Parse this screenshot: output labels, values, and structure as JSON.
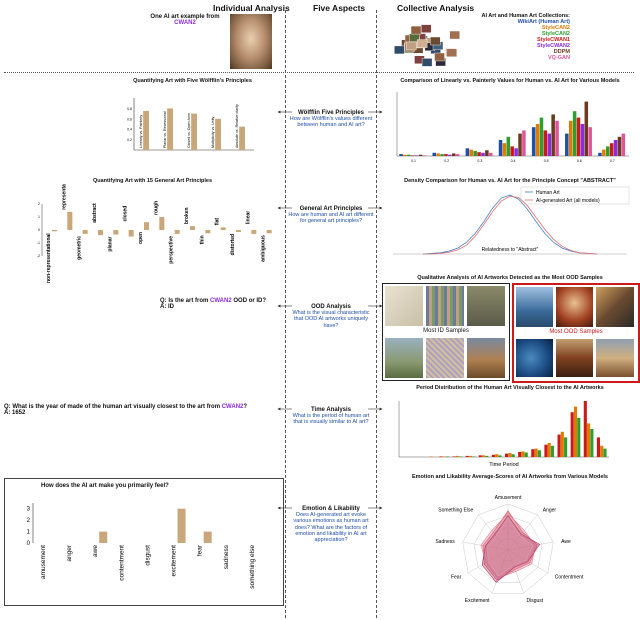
{
  "headers": {
    "individual": "Individual Analysis",
    "five": "Five Aspects",
    "collective": "Collective Analysis"
  },
  "example": {
    "label": "One AI art example from",
    "model": "CWAN2"
  },
  "collections": {
    "title": "AI Art and Human Art Collections:",
    "items": [
      {
        "name": "WikiArt (Human Art)",
        "color": "#1f4fa8"
      },
      {
        "name": "StyleCAN2",
        "color": "#e07b00"
      },
      {
        "name": "StyleCAN2",
        "color": "#2e9e2e"
      },
      {
        "name": "StyleCWAN1",
        "color": "#cc1a1a"
      },
      {
        "name": "StyleCWAN2",
        "color": "#8a2be2"
      },
      {
        "name": "DDPM",
        "color": "#6b3a1e"
      },
      {
        "name": "VQ-GAN",
        "color": "#e05599"
      }
    ]
  },
  "aspects": [
    {
      "title": "Wölfflin Five Principles",
      "question": "How are Wölfflin's values different between human and AI art?"
    },
    {
      "title": "General Art Principles",
      "question": "How are human and AI art different for general art principles?"
    },
    {
      "title": "OOD Analysis",
      "question": "What is the visual characteristic that OOD AI artworks uniquely have?"
    },
    {
      "title": "Time Analysis",
      "question": "What is the period of human art that is visually similar to AI art?"
    },
    {
      "title": "Emotion & Likability",
      "question": "Does AI-generated art evoke various emotions as human art does? What are the factors of emotion and likability in AI art appreciation?"
    }
  ],
  "individual": {
    "wolfflin_title": "Quantifying Art with Five Wölfflin's Principles",
    "general_title": "Quantifying Art with 15 General Art Principles",
    "ood_q_prefix": "Q: Is the art from",
    "ood_q_model": "CWAN2",
    "ood_q_suffix": "OOD or ID?",
    "ood_a": "A: ID",
    "time_q_prefix": "Q: What is the year of made of the human art visually closest to the art from",
    "time_q_model": "CWAN2",
    "time_q_suffix": "?",
    "time_a": "A: 1652",
    "emotion_title": "How does the AI art make you primarily feel?"
  },
  "collective": {
    "wolfflin_title": "Comparison of Linearly vs. Painterly Values for Human vs. AI Art for Various Models",
    "density_title": "Density Comparison for Human vs. AI Art for the Principle Concept \"ABSTRACT\"",
    "density_legend_human": "Human Art",
    "density_legend_ai": "AI-generated Art (all models)",
    "density_xlabel": "Relatedness to \"Abstract\"",
    "ood_title": "Qualitative Analysis of AI Artworks Detected as the Most OOD Samples",
    "ood_id_label": "Most ID Samples",
    "ood_ood_label": "Most OOD Samples",
    "time_title": "Period Distribution of the Human Art Visually Closest to the AI Artworks",
    "time_xlabel": "Time Period",
    "emotion_title": "Emotion and Likability Average-Scores of AI Artworks from Various Models",
    "radar_labels": [
      "Amusement",
      "Anger",
      "Awe",
      "Contentment",
      "Disgust",
      "Excitement",
      "Fear",
      "Sadness",
      "Something Else"
    ]
  },
  "chart_data": [
    {
      "type": "bar",
      "categories": [
        "Linearly vs. Painterly",
        "Planar vs. Recessional",
        "Closed vs. Open-form",
        "Multiplicity vs. Unity",
        "Absolute vs. Relative clarity"
      ],
      "values": [
        0.75,
        0.8,
        0.7,
        0.6,
        0.45
      ],
      "title": "Quantifying Art with Five Wölfflin's Principles",
      "ylim": [
        0,
        1
      ],
      "yticks": [
        "0.8",
        "0.6",
        "0.4",
        "0.2"
      ]
    },
    {
      "type": "bar",
      "categories": [
        "non-representational",
        "representational",
        "geometric",
        "abstract",
        "planar",
        "closed",
        "open",
        "rough",
        "perspective",
        "broken",
        "thin",
        "flat",
        "distorted",
        "linear",
        "ambiguous"
      ],
      "values": [
        -0.1,
        1.4,
        -0.3,
        -0.4,
        -0.35,
        -0.5,
        0.6,
        1.0,
        -0.3,
        0.3,
        -0.25,
        0.2,
        -0.15,
        -0.3,
        -0.25
      ],
      "title": "Quantifying Art with 15 General Art Principles",
      "ylim": [
        -2,
        2
      ],
      "yticks": [
        "2",
        "1",
        "0",
        "-1",
        "-2"
      ]
    },
    {
      "type": "bar",
      "categories": [
        "amusement",
        "anger",
        "awe",
        "contentment",
        "disgust",
        "excitement",
        "fear",
        "sadness",
        "something else"
      ],
      "values": [
        0,
        0,
        1,
        0,
        0,
        3,
        1,
        0,
        0
      ],
      "title": "How does the AI art make you primarily feel?",
      "ylim": [
        0,
        3.5
      ],
      "yticks": [
        "3",
        "2",
        "1",
        "0"
      ]
    },
    {
      "type": "bar",
      "categories": [
        "0.1",
        "0.2",
        "0.3",
        "0.4",
        "0.5",
        "0.6",
        "0.7"
      ],
      "series": [
        {
          "name": "WikiArt (Human Art)",
          "values": [
            0.03,
            0.05,
            0.12,
            0.25,
            0.45,
            0.35,
            0.05
          ]
        },
        {
          "name": "StyleCAN2",
          "values": [
            0.02,
            0.04,
            0.1,
            0.2,
            0.5,
            0.55,
            0.1
          ]
        },
        {
          "name": "StyleCAN2",
          "values": [
            0.02,
            0.03,
            0.08,
            0.3,
            0.6,
            0.7,
            0.15
          ]
        },
        {
          "name": "StyleCWAN1",
          "values": [
            0.01,
            0.03,
            0.06,
            0.15,
            0.4,
            0.6,
            0.2
          ]
        },
        {
          "name": "StyleCWAN2",
          "values": [
            0.01,
            0.02,
            0.05,
            0.12,
            0.35,
            0.5,
            0.25
          ]
        },
        {
          "name": "DDPM",
          "values": [
            0.02,
            0.04,
            0.09,
            0.35,
            0.65,
            0.85,
            0.3
          ]
        },
        {
          "name": "VQ-GAN",
          "values": [
            0.01,
            0.03,
            0.05,
            0.4,
            0.55,
            0.45,
            0.35
          ]
        }
      ],
      "title": "Comparison of Linearly vs. Painterly Values for Human vs. AI Art for Various Models",
      "ylim": [
        0,
        1
      ]
    },
    {
      "type": "line",
      "x": [
        0,
        1,
        2,
        3,
        4,
        5,
        6,
        7,
        8,
        9,
        10,
        11,
        12,
        13,
        14,
        15,
        16,
        17,
        18,
        19,
        20
      ],
      "series": [
        {
          "name": "Human Art",
          "values": [
            0.0,
            0.01,
            0.02,
            0.05,
            0.1,
            0.2,
            0.35,
            0.55,
            0.78,
            0.95,
            1.0,
            0.93,
            0.76,
            0.55,
            0.35,
            0.2,
            0.1,
            0.05,
            0.02,
            0.01,
            0.0
          ]
        },
        {
          "name": "AI-generated Art (all models)",
          "values": [
            0.0,
            0.0,
            0.01,
            0.03,
            0.07,
            0.15,
            0.3,
            0.5,
            0.72,
            0.9,
            0.98,
            0.96,
            0.82,
            0.62,
            0.42,
            0.25,
            0.13,
            0.06,
            0.02,
            0.01,
            0.0
          ]
        }
      ],
      "title": "Density Comparison for Human vs. AI Art for the Principle Concept \"ABSTRACT\"",
      "xlabel": "Relatedness to \"Abstract\""
    },
    {
      "type": "bar",
      "title": "Period Distribution of the Human Art Visually Closest to the AI Artworks",
      "xlabel": "Time Period",
      "categories": [
        "p1",
        "p2",
        "p3",
        "p4",
        "p5",
        "p6",
        "p7",
        "p8",
        "p9",
        "p10",
        "p11",
        "p12",
        "p13",
        "p14",
        "p15",
        "p16"
      ],
      "series": [
        {
          "name": "WikiArt (Human Art)",
          "values": [
            0,
            0,
            0,
            1,
            1,
            2,
            3,
            4,
            6,
            9,
            14,
            22,
            40,
            80,
            100,
            35
          ]
        },
        {
          "name": "StyleCAN2",
          "values": [
            0,
            0,
            1,
            1,
            2,
            2,
            3,
            5,
            7,
            10,
            15,
            25,
            45,
            90,
            60,
            20
          ]
        },
        {
          "name": "DDPM",
          "values": [
            0,
            0,
            0,
            1,
            1,
            1,
            2,
            3,
            5,
            8,
            12,
            20,
            35,
            70,
            50,
            15
          ]
        }
      ],
      "ylim": [
        0,
        100
      ]
    },
    {
      "type": "radar",
      "title": "Emotion and Likability Average-Scores of AI Artworks from Various Models",
      "categories": [
        "Amusement",
        "Anger",
        "Awe",
        "Contentment",
        "Disgust",
        "Excitement",
        "Fear",
        "Sadness",
        "Something Else"
      ],
      "series": [
        {
          "name": "WikiArt (Human Art)",
          "values": [
            0.85,
            0.5,
            0.65,
            0.55,
            0.45,
            0.7,
            0.6,
            0.55,
            0.5
          ]
        },
        {
          "name": "StyleCAN2",
          "values": [
            0.8,
            0.55,
            0.6,
            0.6,
            0.5,
            0.65,
            0.55,
            0.6,
            0.55
          ]
        },
        {
          "name": "StyleCWAN1",
          "values": [
            0.75,
            0.45,
            0.7,
            0.5,
            0.4,
            0.75,
            0.65,
            0.5,
            0.45
          ]
        },
        {
          "name": "VQ-GAN",
          "values": [
            0.7,
            0.4,
            0.55,
            0.45,
            0.35,
            0.6,
            0.5,
            0.45,
            0.4
          ]
        }
      ],
      "ylim": [
        0,
        1
      ]
    }
  ]
}
